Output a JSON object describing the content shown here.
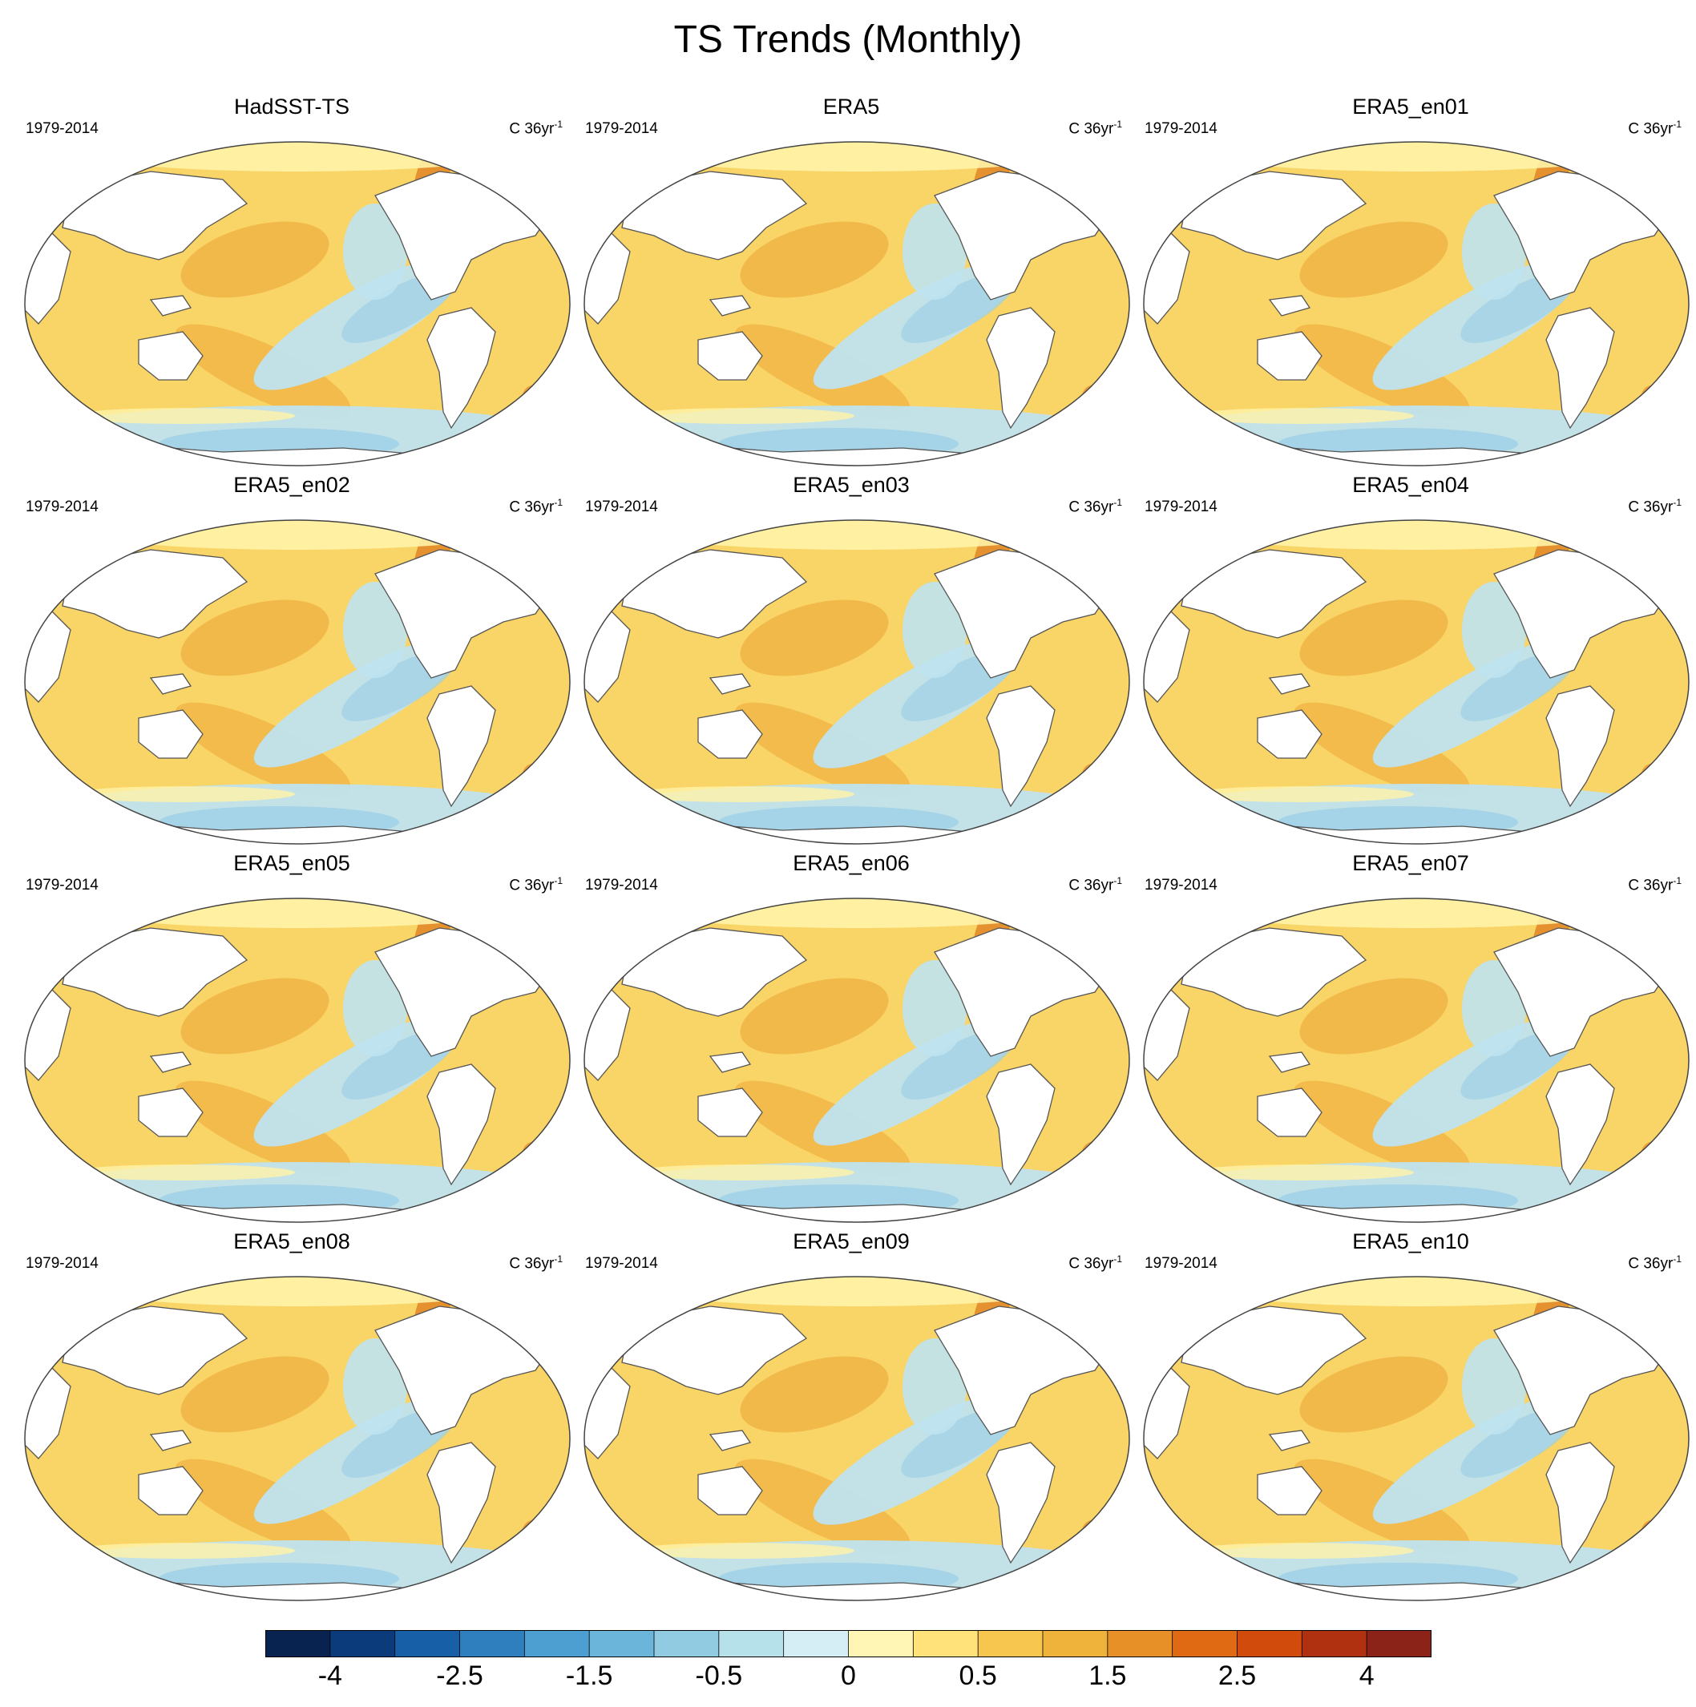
{
  "figure": {
    "title": "TS Trends (Monthly)"
  },
  "chart_data": {
    "type": "heatmap",
    "title": "TS Trends (Monthly)",
    "variable": "TS",
    "panels": [
      {
        "name": "HadSST-TS",
        "period": "1979-2014",
        "units": "C 36yr",
        "units_exp": "-1"
      },
      {
        "name": "ERA5",
        "period": "1979-2014",
        "units": "C 36yr",
        "units_exp": "-1"
      },
      {
        "name": "ERA5_en01",
        "period": "1979-2014",
        "units": "C 36yr",
        "units_exp": "-1"
      },
      {
        "name": "ERA5_en02",
        "period": "1979-2014",
        "units": "C 36yr",
        "units_exp": "-1"
      },
      {
        "name": "ERA5_en03",
        "period": "1979-2014",
        "units": "C 36yr",
        "units_exp": "-1"
      },
      {
        "name": "ERA5_en04",
        "period": "1979-2014",
        "units": "C 36yr",
        "units_exp": "-1"
      },
      {
        "name": "ERA5_en05",
        "period": "1979-2014",
        "units": "C 36yr",
        "units_exp": "-1"
      },
      {
        "name": "ERA5_en06",
        "period": "1979-2014",
        "units": "C 36yr",
        "units_exp": "-1"
      },
      {
        "name": "ERA5_en07",
        "period": "1979-2014",
        "units": "C 36yr",
        "units_exp": "-1"
      },
      {
        "name": "ERA5_en08",
        "period": "1979-2014",
        "units": "C 36yr",
        "units_exp": "-1"
      },
      {
        "name": "ERA5_en09",
        "period": "1979-2014",
        "units": "C 36yr",
        "units_exp": "-1"
      },
      {
        "name": "ERA5_en10",
        "period": "1979-2014",
        "units": "C 36yr",
        "units_exp": "-1"
      }
    ],
    "colorbar": {
      "levels": [
        -4,
        -3,
        -2.5,
        -2,
        -1.5,
        -1,
        -0.5,
        -0.25,
        0,
        0.25,
        0.5,
        1,
        1.5,
        2,
        2.5,
        3,
        4
      ],
      "tick_labels": [
        "-4",
        "-2.5",
        "-1.5",
        "-0.5",
        "0",
        "0.5",
        "1.5",
        "2.5",
        "4"
      ],
      "tick_level_index": [
        0,
        2,
        4,
        6,
        8,
        10,
        12,
        14,
        16
      ],
      "colors": [
        "#08234f",
        "#0b3b7a",
        "#1760a8",
        "#2f7fbe",
        "#4c9fd0",
        "#6bb4da",
        "#91cbe2",
        "#b6e0ea",
        "#d5eef6",
        "#fff5b5",
        "#ffe27a",
        "#f7c64e",
        "#efb33b",
        "#e89028",
        "#e06a14",
        "#d04b0c",
        "#b03110",
        "#8c2318"
      ]
    },
    "map_colors": {
      "ocean_warm": "#f9d466",
      "ocean_warm_strong": "#f0b445",
      "ocean_hot": "#e38a2a",
      "ocean_cool": "#bfe3ef",
      "ocean_cool_strong": "#9ed0e6",
      "ocean_neutral": "#fff3a8",
      "land": "#ffffff",
      "coast": "#555555"
    }
  }
}
